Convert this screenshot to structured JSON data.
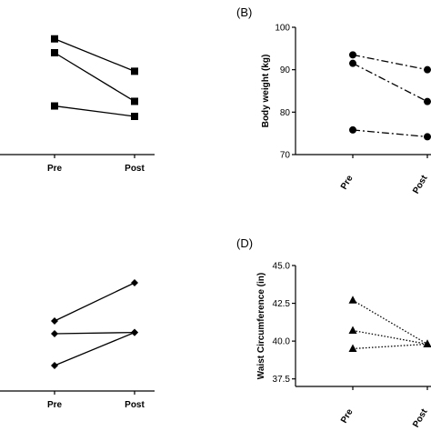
{
  "chart_data": [
    {
      "type": "line",
      "panel": "",
      "categories": [
        "Pre",
        "Post"
      ],
      "series": [
        {
          "values": [
            1.0,
            0.72
          ],
          "line_style": "solid",
          "marker": "square"
        },
        {
          "values": [
            0.88,
            0.46
          ],
          "line_style": "solid",
          "marker": "square"
        },
        {
          "values": [
            0.42,
            0.33
          ],
          "line_style": "solid",
          "marker": "square"
        }
      ],
      "ylabel": "",
      "ylim": [
        0,
        1.1
      ],
      "yticks": []
    },
    {
      "type": "line",
      "panel": "(B)",
      "categories": [
        "Pre",
        "Post"
      ],
      "series": [
        {
          "values": [
            93.5,
            90.0
          ],
          "line_style": "dash-dot",
          "marker": "circle"
        },
        {
          "values": [
            91.5,
            82.5
          ],
          "line_style": "dash-dot",
          "marker": "circle"
        },
        {
          "values": [
            75.8,
            74.2
          ],
          "line_style": "dash-dot",
          "marker": "circle"
        }
      ],
      "ylabel": "Body weight (kg)",
      "ylim": [
        70,
        100
      ],
      "yticks": [
        "70",
        "80",
        "90",
        "100"
      ]
    },
    {
      "type": "line",
      "panel": "",
      "categories": [
        "Pre",
        "Post"
      ],
      "series": [
        {
          "values": [
            0.55,
            0.85
          ],
          "line_style": "solid",
          "marker": "diamond"
        },
        {
          "values": [
            0.45,
            0.46
          ],
          "line_style": "solid",
          "marker": "diamond"
        },
        {
          "values": [
            0.2,
            0.46
          ],
          "line_style": "solid",
          "marker": "diamond"
        }
      ],
      "ylabel": "",
      "ylim": [
        0,
        1
      ],
      "yticks": []
    },
    {
      "type": "line",
      "panel": "(D)",
      "categories": [
        "Pre",
        "Post"
      ],
      "series": [
        {
          "values": [
            42.7,
            39.8
          ],
          "line_style": "dotted",
          "marker": "triangle"
        },
        {
          "values": [
            40.7,
            39.8
          ],
          "line_style": "dotted",
          "marker": "triangle"
        },
        {
          "values": [
            39.5,
            39.8
          ],
          "line_style": "dotted",
          "marker": "triangle"
        }
      ],
      "ylabel": "Waist Circumference (in)",
      "ylim": [
        37.0,
        45.0
      ],
      "yticks": [
        "37.5",
        "40.0",
        "42.5",
        "45.0"
      ]
    }
  ]
}
